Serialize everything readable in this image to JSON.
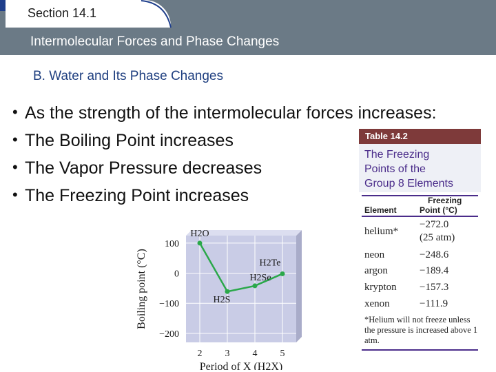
{
  "header": {
    "section_label": "Section 14.1",
    "title": "Intermolecular Forces and Phase Changes",
    "band_color": "#6b7a86"
  },
  "subtitle": "B. Water and Its Phase Changes",
  "bullets": [
    "As the strength of the intermolecular forces increases:",
    "The Boiling Point increases",
    "The Vapor Pressure decreases",
    "The Freezing Point increases"
  ],
  "table_figure": {
    "table_label": "Table 14.2",
    "title_lines": [
      "The Freezing",
      "Points of the",
      "Group 8 Elements"
    ],
    "col_element": "Element",
    "col_fp_line1": "Freezing",
    "col_fp_line2": "Point (°C)",
    "rows": [
      {
        "element": "helium*",
        "value": "−272.0",
        "extra": "(25 atm)"
      },
      {
        "element": "neon",
        "value": "−248.6"
      },
      {
        "element": "argon",
        "value": "−189.4"
      },
      {
        "element": "krypton",
        "value": "−157.3"
      },
      {
        "element": "xenon",
        "value": "−111.9"
      }
    ],
    "footnote": "*Helium will not freeze unless the pressure is increased above 1 atm."
  },
  "chart_data": {
    "type": "line",
    "xlabel": "Period of X (H2X)",
    "ylabel": "Boiling point (°C)",
    "x": [
      2,
      3,
      4,
      5
    ],
    "xticks": [
      "2",
      "3",
      "4",
      "5"
    ],
    "yticks": [
      "100",
      "0",
      "−100",
      "−200"
    ],
    "ytick_values": [
      100,
      0,
      -100,
      -200
    ],
    "ylim": [
      -230,
      125
    ],
    "xlim": [
      1.5,
      5.5
    ],
    "series": [
      {
        "values": [
          100,
          -61,
          -42,
          -2
        ],
        "color": "#2aa84a"
      }
    ],
    "point_labels": [
      "H2O",
      "H2S",
      "H2Se",
      "H2Te"
    ],
    "panel_color": "#c9cce6",
    "grid": true
  }
}
